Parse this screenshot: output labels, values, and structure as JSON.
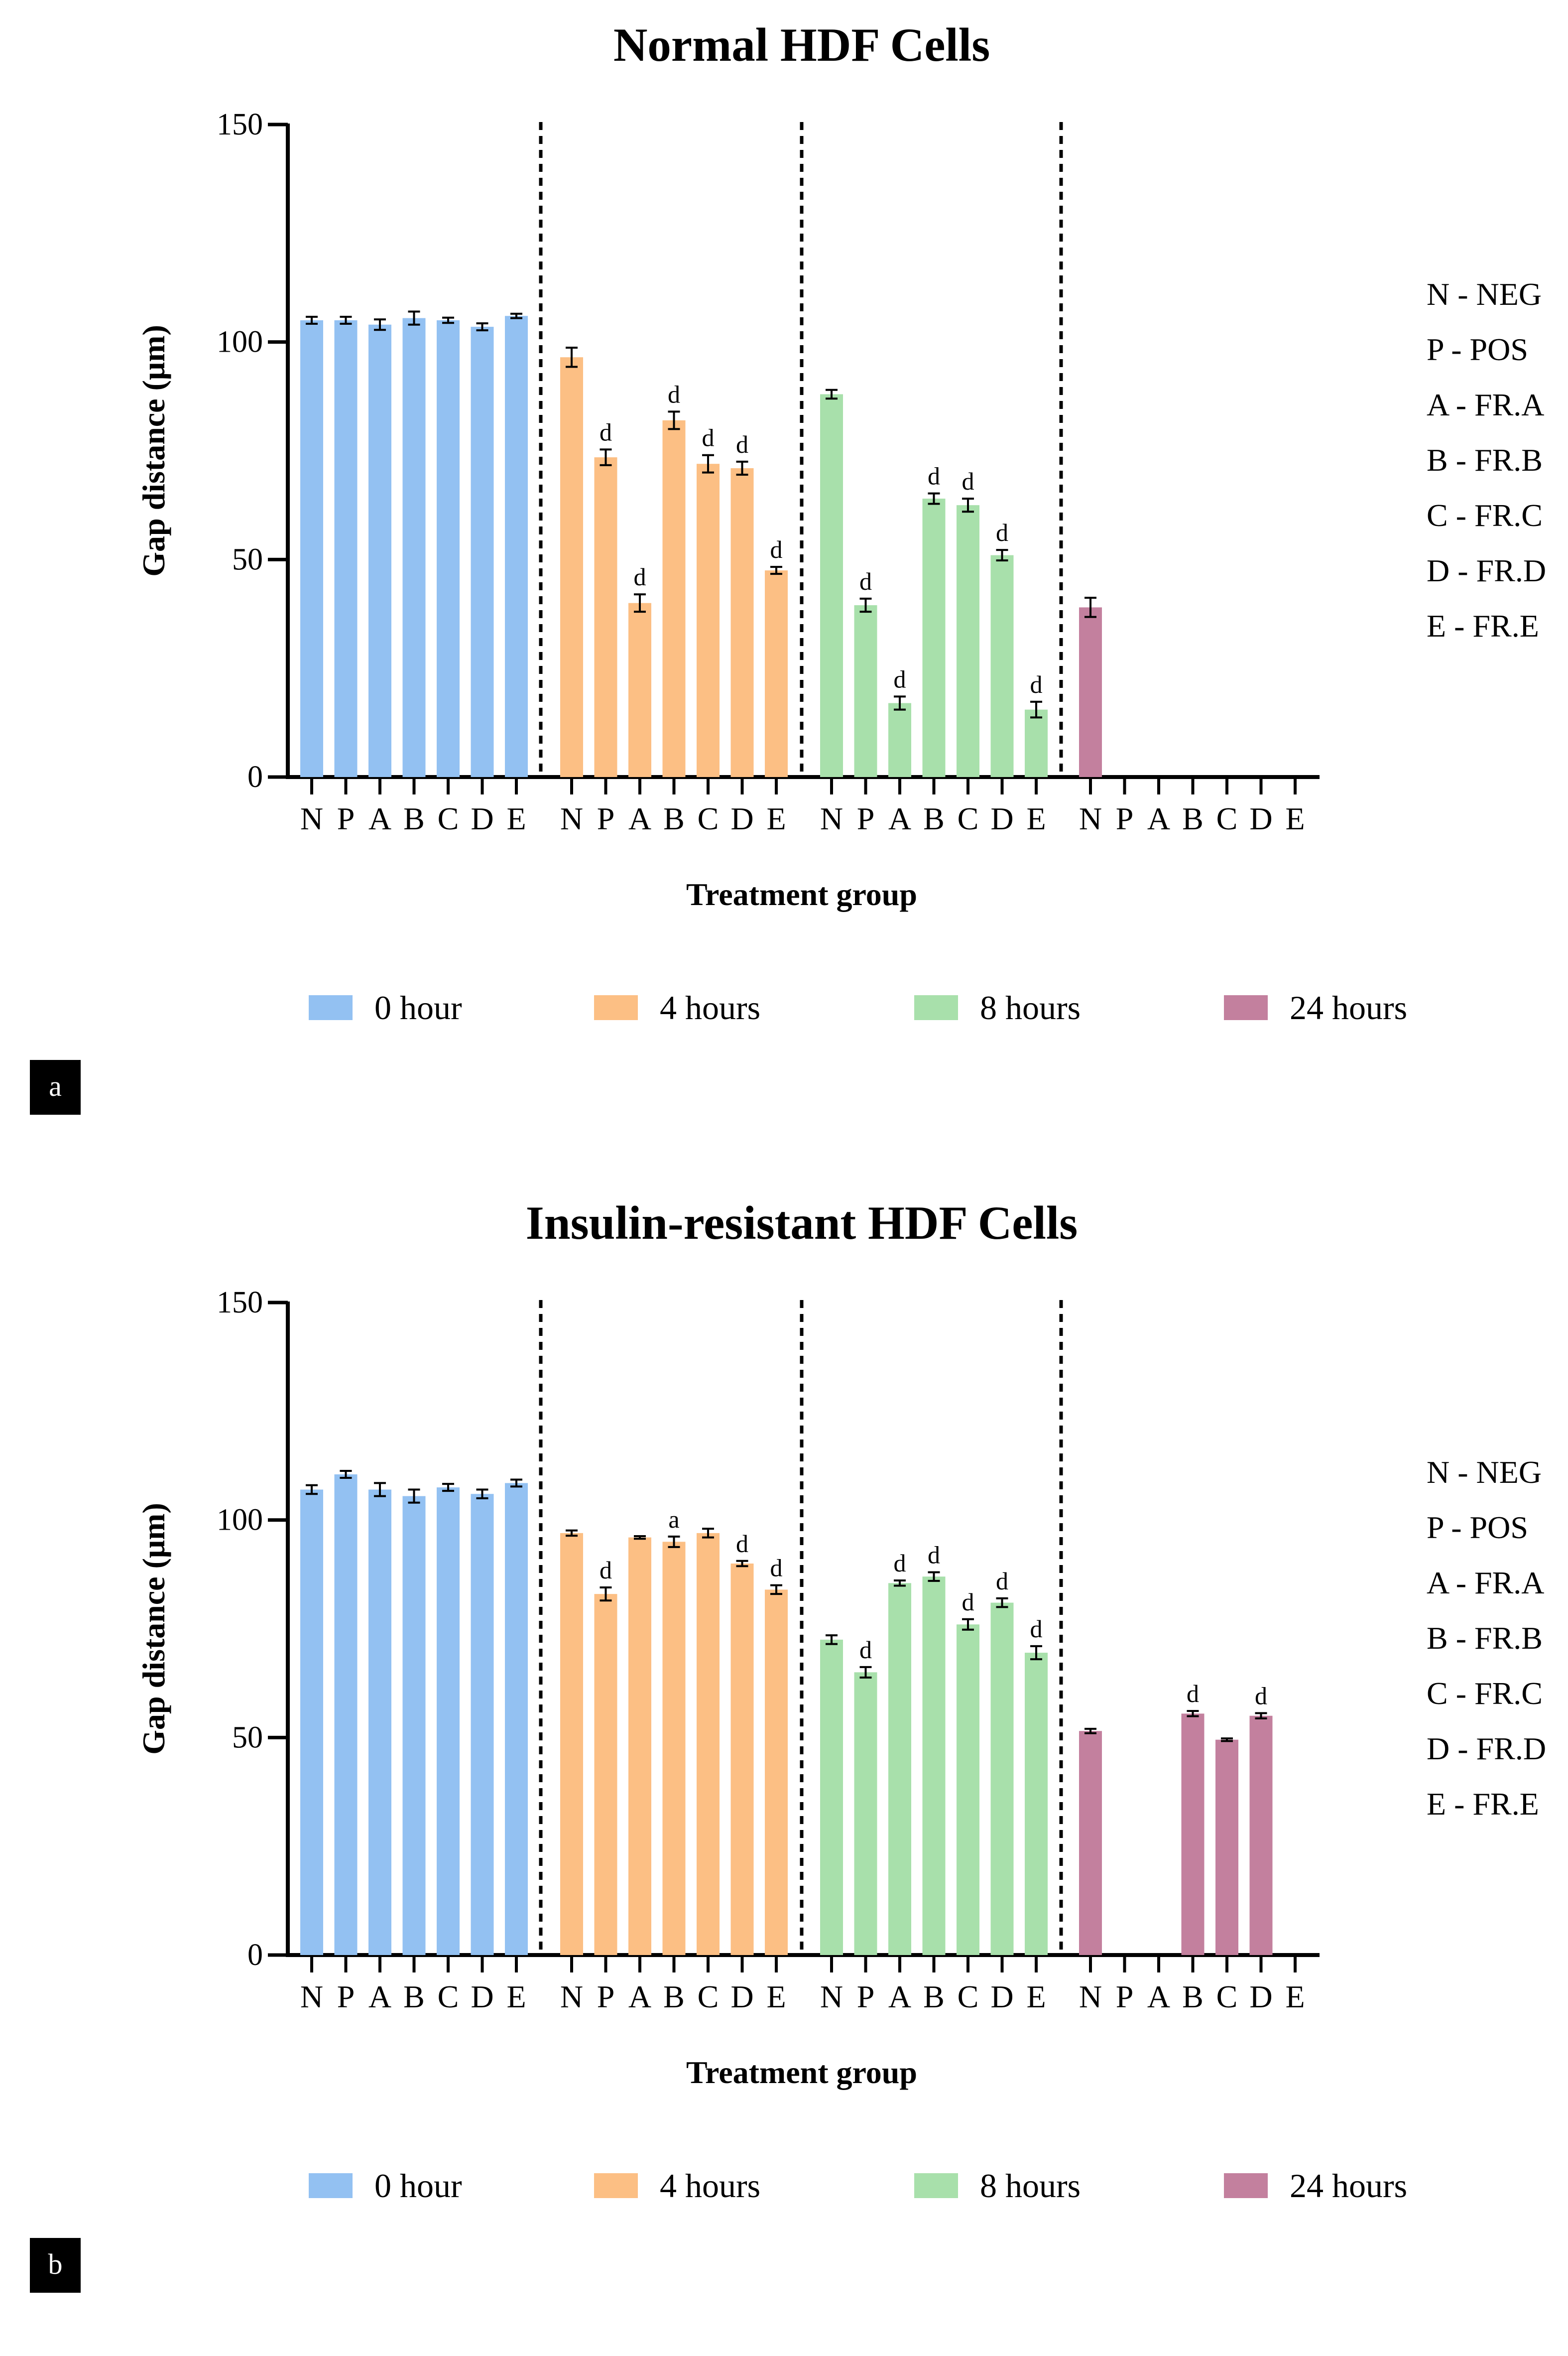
{
  "colors": {
    "0 hour": "#93c1f2",
    "4 hours": "#fcbf84",
    "8 hours": "#a8e0ab",
    "24 hours": "#c3809e",
    "panel_label_bg": "#000000"
  },
  "chart_data": [
    {
      "type": "bar",
      "panel_label": "a",
      "title": "Normal HDF Cells",
      "xlabel": "Treatment group",
      "ylabel": "Gap distance (μm)",
      "ylim": [
        0,
        150
      ],
      "yticks": [
        0,
        50,
        100,
        150
      ],
      "categories": [
        "N",
        "P",
        "A",
        "B",
        "C",
        "D",
        "E"
      ],
      "key": [
        "N - NEG",
        "P - POS",
        "A - FR.A",
        "B - FR.B",
        "C - FR.C",
        "D - FR.D",
        "E - FR.E"
      ],
      "series": [
        {
          "name": "0 hour",
          "values": [
            105,
            105,
            104,
            105.5,
            105,
            103.5,
            106
          ],
          "errors": [
            0.8,
            0.8,
            1.2,
            1.5,
            0.6,
            0.8,
            0.5
          ],
          "sig": [
            "",
            "",
            "",
            "",
            "",
            "",
            ""
          ]
        },
        {
          "name": "4 hours",
          "values": [
            96.5,
            73.5,
            40,
            82,
            72,
            71,
            47.5
          ],
          "errors": [
            2.2,
            1.8,
            2.0,
            2.0,
            2.0,
            1.5,
            0.8
          ],
          "sig": [
            "",
            "d",
            "d",
            "d",
            "d",
            "d",
            "d"
          ]
        },
        {
          "name": "8 hours",
          "values": [
            88,
            39.5,
            17,
            64,
            62.5,
            51,
            15.5
          ],
          "errors": [
            1.0,
            1.5,
            1.5,
            1.2,
            1.5,
            1.2,
            1.8
          ],
          "sig": [
            "",
            "d",
            "d",
            "d",
            "d",
            "d",
            "d"
          ]
        },
        {
          "name": "24 hours",
          "values": [
            39,
            0,
            0,
            0,
            0,
            0,
            0
          ],
          "errors": [
            2.2,
            0,
            0,
            0,
            0,
            0,
            0
          ],
          "sig": [
            "",
            "",
            "",
            "",
            "",
            "",
            ""
          ]
        }
      ]
    },
    {
      "type": "bar",
      "panel_label": "b",
      "title": "Insulin-resistant HDF Cells",
      "xlabel": "Treatment group",
      "ylabel": "Gap distance (μm)",
      "ylim": [
        0,
        150
      ],
      "yticks": [
        0,
        50,
        100,
        150
      ],
      "categories": [
        "N",
        "P",
        "A",
        "B",
        "C",
        "D",
        "E"
      ],
      "key": [
        "N - NEG",
        "P - POS",
        "A - FR.A",
        "B - FR.B",
        "C - FR.C",
        "D - FR.D",
        "E - FR.E"
      ],
      "series": [
        {
          "name": "0 hour",
          "values": [
            107,
            110.5,
            107,
            105.5,
            107.5,
            106,
            108.5
          ],
          "errors": [
            1.0,
            0.8,
            1.5,
            1.5,
            0.8,
            1.0,
            0.8
          ],
          "sig": [
            "",
            "",
            "",
            "",
            "",
            "",
            ""
          ]
        },
        {
          "name": "4 hours",
          "values": [
            97,
            83,
            96,
            95,
            97,
            90,
            84
          ],
          "errors": [
            0.6,
            1.5,
            0.3,
            1.2,
            1.0,
            0.6,
            1.0
          ],
          "sig": [
            "",
            "d",
            "",
            "a",
            "",
            "d",
            "d"
          ]
        },
        {
          "name": "8 hours",
          "values": [
            72.5,
            65,
            85.5,
            87,
            76,
            81,
            69.5
          ],
          "errors": [
            1.0,
            1.2,
            0.6,
            1.0,
            1.2,
            1.0,
            1.5
          ],
          "sig": [
            "",
            "d",
            "d",
            "d",
            "d",
            "d",
            "d"
          ]
        },
        {
          "name": "24 hours",
          "values": [
            51.5,
            0,
            0,
            55.5,
            49.5,
            55,
            0
          ],
          "errors": [
            0.5,
            0,
            0,
            0.6,
            0.3,
            0.6,
            0
          ],
          "sig": [
            "",
            "",
            "",
            "d",
            "",
            "d",
            ""
          ]
        }
      ]
    }
  ]
}
